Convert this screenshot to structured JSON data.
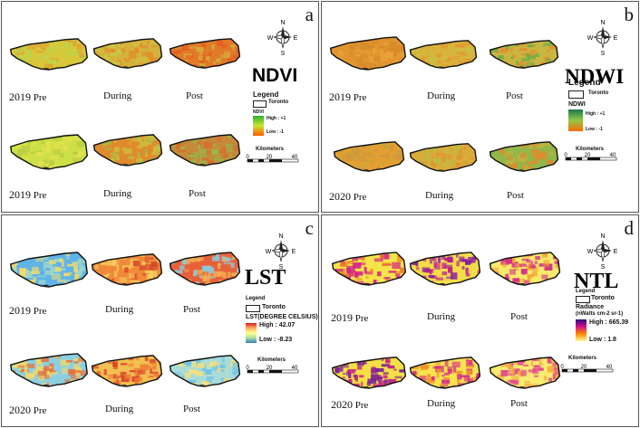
{
  "panels": {
    "a": {
      "letter": "a",
      "title": "NDVI",
      "legend_title": "Legend",
      "legend_item": "Toronto",
      "ramp_label": "NDVI",
      "high": "High : +1",
      "low": "Low : -1",
      "ramp_colors": [
        "#2db22d",
        "#c8e632",
        "#ff5a00"
      ],
      "row1_year": "2019",
      "row1_suffix": "Pre",
      "row2_year": "2019",
      "row2_suffix": "Pre",
      "during": "During",
      "post": "Post",
      "maps": [
        {
          "colors": [
            "#d7c83a",
            "#c0d24a",
            "#e0a030"
          ]
        },
        {
          "colors": [
            "#d4b23a",
            "#c9c845",
            "#e38a2a"
          ]
        },
        {
          "colors": [
            "#e07a28",
            "#d7a838",
            "#e85a20"
          ]
        },
        {
          "colors": [
            "#cde045",
            "#e3e24f",
            "#b8cc42"
          ]
        },
        {
          "colors": [
            "#e08a2e",
            "#cbbd3e",
            "#9cc045"
          ]
        },
        {
          "colors": [
            "#c48a3a",
            "#9ab54a",
            "#d96a2c"
          ]
        }
      ]
    },
    "b": {
      "letter": "b",
      "title": "NDWI",
      "legend_title": "Legend",
      "legend_item": "Toronto",
      "ramp_label": "NDWI",
      "high": "High : +1",
      "low": "Low : -1",
      "ramp_colors": [
        "#1a7a4a",
        "#8fc84a",
        "#ff6a00"
      ],
      "row1_year": "2019",
      "row1_suffix": "Pre",
      "row2_year": "2020",
      "row2_suffix": "Pre",
      "during": "During",
      "post": "Post",
      "maps": [
        {
          "colors": [
            "#e0952e",
            "#d68a2a",
            "#e8a33a"
          ]
        },
        {
          "colors": [
            "#d9b43c",
            "#cbbd42",
            "#e29a30"
          ]
        },
        {
          "colors": [
            "#c9b640",
            "#6fae48",
            "#e39030"
          ]
        },
        {
          "colors": [
            "#e2a032",
            "#d7933a",
            "#c9a23a"
          ]
        },
        {
          "colors": [
            "#d9ac3a",
            "#bcbb44",
            "#e09530"
          ]
        },
        {
          "colors": [
            "#8fb84a",
            "#c5b13e",
            "#e28a2e"
          ]
        }
      ]
    },
    "c": {
      "letter": "c",
      "title": "LST",
      "legend_title": "Legend",
      "legend_item": "Toronto",
      "ramp_label": "LST(DEGREE CELSIUS)",
      "high": "High : 42.07",
      "low": "Low : -8.23",
      "ramp_colors": [
        "#d7191c",
        "#fdae61",
        "#ffff8c",
        "#abdda4",
        "#2b83ba"
      ],
      "row1_year": "2019",
      "row1_suffix": "Pre",
      "row2_year": "2020",
      "row2_suffix": "Pre",
      "during": "During",
      "post": "Post",
      "maps": [
        {
          "colors": [
            "#5fb3e8",
            "#9fd8c8",
            "#f5d96a"
          ]
        },
        {
          "colors": [
            "#f08a3a",
            "#f7d060",
            "#d8452a"
          ]
        },
        {
          "colors": [
            "#e8603a",
            "#f4b050",
            "#8fc8d8"
          ]
        },
        {
          "colors": [
            "#8ccfe0",
            "#f3d86a",
            "#e6703a"
          ]
        },
        {
          "colors": [
            "#f2c050",
            "#ee7a35",
            "#d9402a"
          ]
        },
        {
          "colors": [
            "#a8dcd8",
            "#6cc0e8",
            "#f6e07a"
          ]
        }
      ]
    },
    "d": {
      "letter": "d",
      "title": "NTL",
      "legend_title": "Legend",
      "legend_item": "Toronto",
      "ramp_label": "Radiance",
      "ramp_units": "(nWatts cm-2 sr-1)",
      "high": "High : 665.39",
      "low": "Low : 1.8",
      "ramp_colors": [
        "#2b0a7a",
        "#d0108a",
        "#ff8800",
        "#fff8a0"
      ],
      "row1_year": "2019",
      "row1_suffix": "Pre",
      "row2_year": "2020",
      "row2_suffix": "Pre",
      "during": "During",
      "post": "Post",
      "maps": [
        {
          "colors": [
            "#f5e44a",
            "#d4208a",
            "#f08a1a"
          ]
        },
        {
          "colors": [
            "#f3dd48",
            "#c21c86",
            "#8a1ea0"
          ]
        },
        {
          "colors": [
            "#f8ea6a",
            "#f2a030",
            "#d42a8c"
          ]
        },
        {
          "colors": [
            "#f4e046",
            "#cf1f88",
            "#7a2098"
          ]
        },
        {
          "colors": [
            "#f6e350",
            "#d6248c",
            "#f0902a"
          ]
        },
        {
          "colors": [
            "#f8ec70",
            "#e4408e",
            "#f3b040"
          ]
        }
      ]
    }
  },
  "compass": {
    "n": "N",
    "s": "S",
    "e": "E",
    "w": "W"
  },
  "scalebar": {
    "title": "Kilometers",
    "t0": "0",
    "t1": "20",
    "t2": "40"
  }
}
